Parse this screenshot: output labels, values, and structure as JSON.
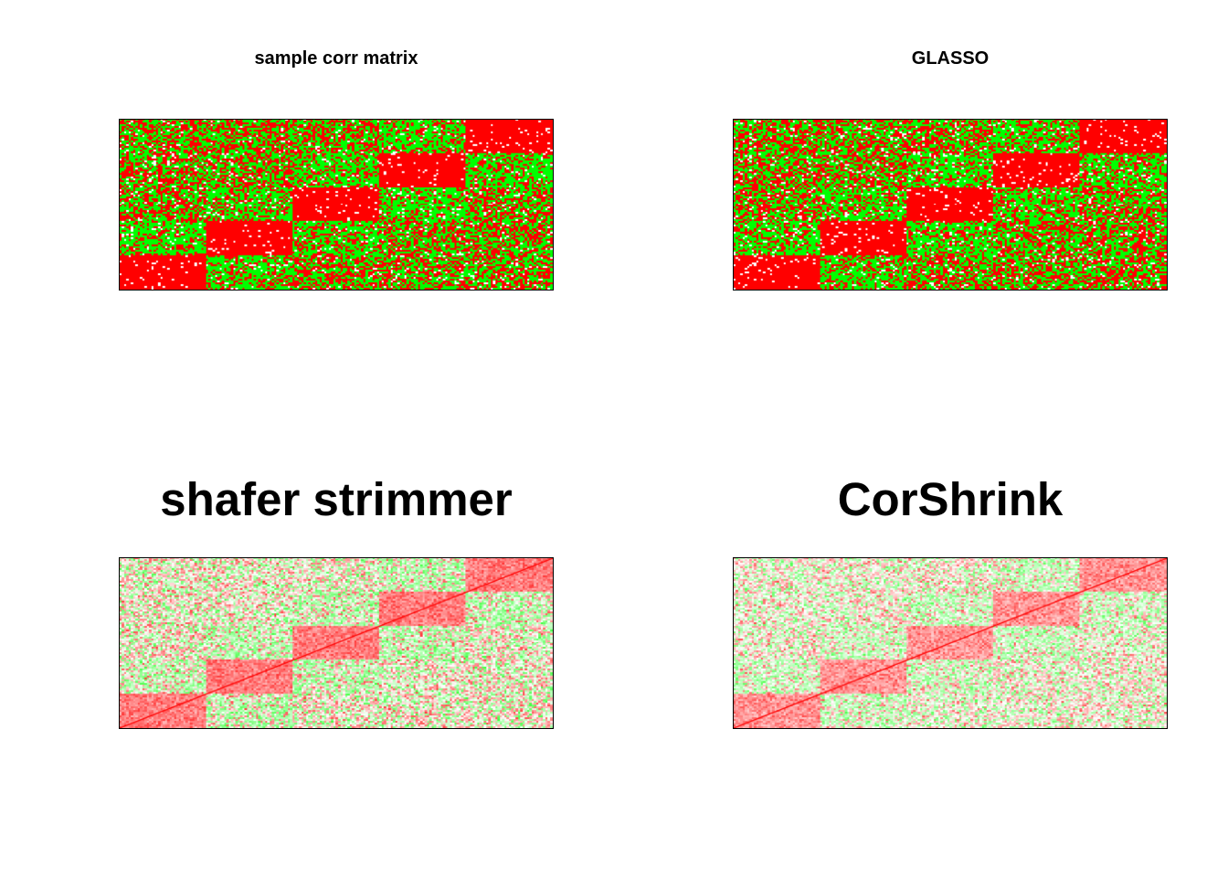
{
  "colors": {
    "positive": "#ff0000",
    "negative": "#00ff00",
    "neutral": "#ffffff"
  },
  "chart_data": [
    {
      "type": "heatmap",
      "title": "sample corr matrix",
      "n_blocks": 5,
      "intensity": 1.0,
      "diagonal_line": false,
      "color_scale": {
        "low": "#00ff00",
        "mid": "#ffffff",
        "high": "#ff0000"
      }
    },
    {
      "type": "heatmap",
      "title": "GLASSO",
      "n_blocks": 5,
      "intensity": 1.0,
      "diagonal_line": false,
      "color_scale": {
        "low": "#00ff00",
        "mid": "#ffffff",
        "high": "#ff0000"
      }
    },
    {
      "type": "heatmap",
      "title": "shafer strimmer",
      "n_blocks": 5,
      "intensity": 0.45,
      "diagonal_line": true,
      "color_scale": {
        "low": "#00ff00",
        "mid": "#ffffff",
        "high": "#ff0000"
      }
    },
    {
      "type": "heatmap",
      "title": "CorShrink",
      "n_blocks": 5,
      "intensity": 0.3,
      "diagonal_line": true,
      "color_scale": {
        "low": "#00ff00",
        "mid": "#ffffff",
        "high": "#ff0000"
      }
    }
  ]
}
